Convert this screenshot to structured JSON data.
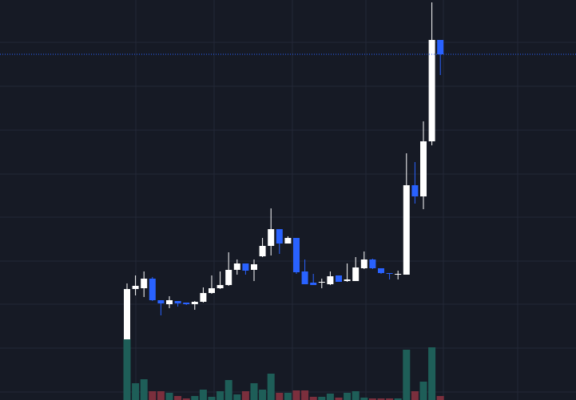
{
  "chart_data": {
    "type": "candlestick",
    "open": [
      7.5,
      13.8,
      13.9,
      15.1,
      12.4,
      11.9,
      12.3,
      12.1,
      11.9,
      12.2,
      13.3,
      13.9,
      14.3,
      16.2,
      17.0,
      16.2,
      17.9,
      19.2,
      21.3,
      19.5,
      20.2,
      16.0,
      14.6,
      14.6,
      14.4,
      15.5,
      14.8,
      14.8,
      16.4,
      17.5,
      16.4,
      15.8,
      15.6,
      15.6,
      26.8,
      25.4,
      32.3,
      45.0
    ],
    "high": [
      14.5,
      15.5,
      16.0,
      15.3,
      12.4,
      12.9,
      12.3,
      12.1,
      12.3,
      14.0,
      15.5,
      16.0,
      18.4,
      17.5,
      17.0,
      17.5,
      20.2,
      23.9,
      21.3,
      20.4,
      20.2,
      17.5,
      15.7,
      15.1,
      16.0,
      15.5,
      17.0,
      17.8,
      18.5,
      17.6,
      16.4,
      15.8,
      16.1,
      30.8,
      29.7,
      34.8,
      49.7,
      45.0
    ],
    "low": [
      7.5,
      13.0,
      12.8,
      12.3,
      10.5,
      11.4,
      11.6,
      11.8,
      11.2,
      12.1,
      13.2,
      13.8,
      14.2,
      15.6,
      15.6,
      14.8,
      17.8,
      18.0,
      18.2,
      19.5,
      15.7,
      14.4,
      14.3,
      13.9,
      14.3,
      14.7,
      14.7,
      14.8,
      16.3,
      16.3,
      15.7,
      15.0,
      15.0,
      15.6,
      24.5,
      23.8,
      31.8,
      40.6
    ],
    "close": [
      13.8,
      14.2,
      15.1,
      12.4,
      12.0,
      12.4,
      12.0,
      11.9,
      12.2,
      13.3,
      13.9,
      14.3,
      16.2,
      17.0,
      16.1,
      16.9,
      19.2,
      21.3,
      19.5,
      20.2,
      15.9,
      14.4,
      14.3,
      14.7,
      15.4,
      14.7,
      15.0,
      16.5,
      17.5,
      16.4,
      15.8,
      15.7,
      15.7,
      26.8,
      25.4,
      32.3,
      45.0,
      43.2
    ],
    "volume": [
      75,
      20,
      25,
      10,
      10,
      8,
      4,
      1,
      4,
      12,
      3,
      10,
      24,
      6,
      10,
      20,
      12,
      32,
      8,
      8,
      11,
      11,
      3,
      3,
      7,
      2,
      8,
      10,
      2,
      1,
      1,
      1,
      1,
      62,
      10,
      22,
      65,
      4
    ],
    "ylim": [
      0,
      50
    ],
    "volume_lim": [
      0,
      500
    ],
    "up_color": "#ffffff",
    "down_color": "#2962ff",
    "volume_up_color": "#1e5e58",
    "volume_down_color": "#7b2f3d",
    "grid": true
  }
}
